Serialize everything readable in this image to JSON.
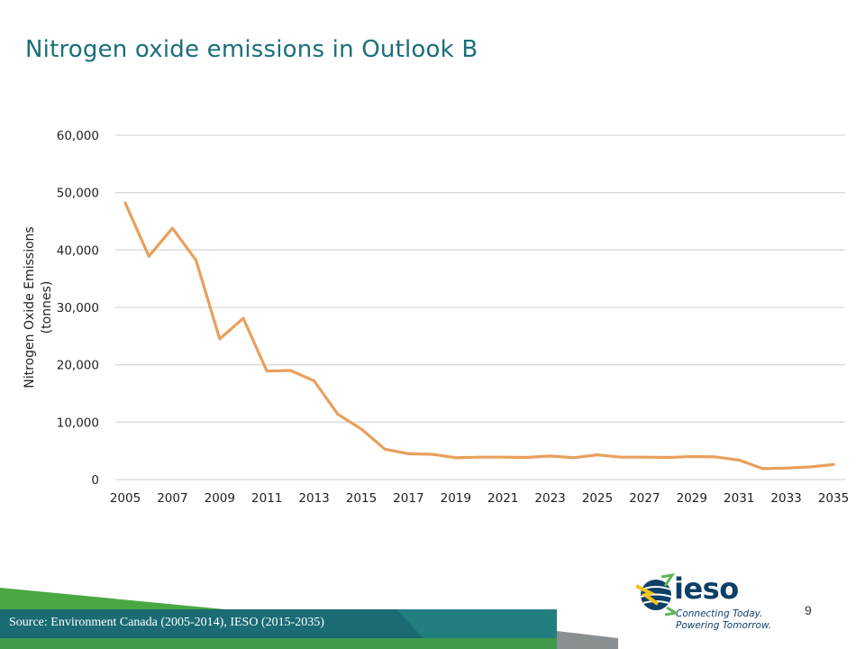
{
  "slide": {
    "title": "Nitrogen oxide emissions in Outlook B",
    "source": "Source: Environment Canada (2005-2014), IESO (2015-2035)",
    "page_number": "9"
  },
  "logo": {
    "word": "ieso",
    "tagline_1": "Connecting Today.",
    "tagline_2": "Powering Tomorrow."
  },
  "colors": {
    "title": "#1a6f7a",
    "series": "#e8a05c",
    "grid": "#d9d9d9",
    "footer_bar": "#1a6b74",
    "footer_green": "#4aa843",
    "logo": "#0d3f68"
  },
  "chart_data": {
    "type": "line",
    "title": "",
    "xlabel": "",
    "ylabel_lines": [
      "Nitrogen Oxide Emissions",
      "(tonnes)"
    ],
    "ylim": [
      0,
      60000
    ],
    "yticks": [
      0,
      10000,
      20000,
      30000,
      40000,
      50000,
      60000
    ],
    "ytick_labels": [
      "0",
      "10,000",
      "20,000",
      "30,000",
      "40,000",
      "50,000",
      "60,000"
    ],
    "xticks": [
      "2005",
      "2007",
      "2009",
      "2011",
      "2013",
      "2015",
      "2017",
      "2019",
      "2021",
      "2023",
      "2025",
      "2027",
      "2029",
      "2031",
      "2033",
      "2035"
    ],
    "grid": true,
    "legend": "none",
    "x": [
      2005,
      2006,
      2007,
      2008,
      2009,
      2010,
      2011,
      2012,
      2013,
      2014,
      2015,
      2016,
      2017,
      2018,
      2019,
      2020,
      2021,
      2022,
      2023,
      2024,
      2025,
      2026,
      2027,
      2028,
      2029,
      2030,
      2031,
      2032,
      2033,
      2034,
      2035
    ],
    "series": [
      {
        "color": "#e8a05c",
        "values": [
          48200,
          38900,
          43800,
          38200,
          24500,
          28100,
          18900,
          19000,
          17200,
          11400,
          8800,
          5300,
          4500,
          4400,
          3800,
          3900,
          3900,
          3850,
          4100,
          3800,
          4300,
          3900,
          3900,
          3850,
          4000,
          3950,
          3400,
          1900,
          2000,
          2200,
          2600
        ]
      }
    ]
  }
}
